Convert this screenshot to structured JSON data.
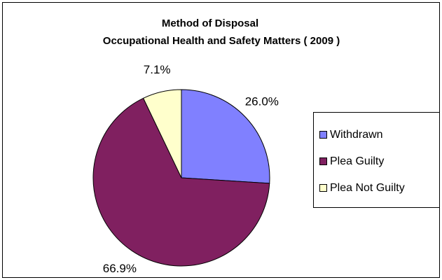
{
  "chart_data": {
    "type": "pie",
    "title": "Method of Disposal",
    "subtitle": "Occupational Health and Safety Matters ( 2009 )",
    "categories": [
      "Withdrawn",
      "Plea Guilty",
      "Plea Not Guilty"
    ],
    "values": [
      26.0,
      66.9,
      7.1
    ],
    "value_labels": [
      "26.0%",
      "66.9%",
      "7.1%"
    ],
    "colors": [
      "#8080ff",
      "#802060",
      "#ffffcc"
    ],
    "legend": "right"
  }
}
